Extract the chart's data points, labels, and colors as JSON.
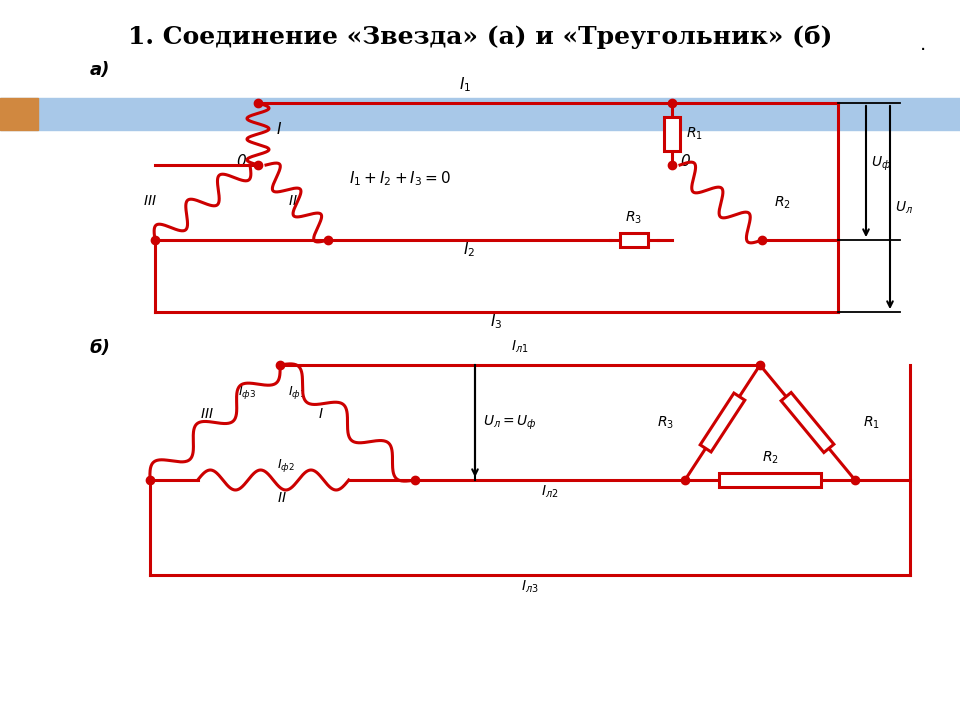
{
  "title": "1. Соединение «Звезда» (а) и «Треугольник» (б)",
  "title_fontsize": 18,
  "red": "#cc0000",
  "black": "#000000",
  "bg_color": "#ffffff",
  "highlight_color": "#a8c8e8",
  "highlight2_color": "#d08840",
  "label_a": "а)",
  "label_b": "б)"
}
